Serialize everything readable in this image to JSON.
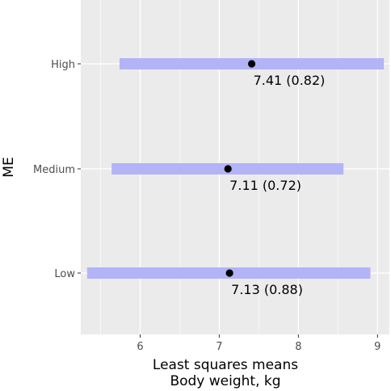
{
  "chart_data": {
    "type": "scatter",
    "title": "",
    "xlabel_lines": [
      "Least squares means",
      "Body weight, kg"
    ],
    "ylabel": "ME",
    "xlim": [
      5.25,
      9.15
    ],
    "x_ticks": [
      6,
      7,
      8,
      9
    ],
    "x_tick_labels": [
      "6",
      "7",
      "8",
      "9"
    ],
    "categories": [
      "High",
      "Medium",
      "Low"
    ],
    "points": [
      {
        "category": "High",
        "mean": 7.41,
        "lower": 5.74,
        "upper": 9.08,
        "label": "7.41 (0.82)"
      },
      {
        "category": "Medium",
        "mean": 7.11,
        "lower": 5.64,
        "upper": 8.57,
        "label": "7.11 (0.72)"
      },
      {
        "category": "Low",
        "mean": 7.13,
        "lower": 5.33,
        "upper": 8.91,
        "label": "7.13 (0.88)"
      }
    ],
    "grid": true,
    "colors": {
      "panel": "#ebebeb",
      "grid": "#ffffff",
      "interval": "#b3b3f8",
      "point": "#000000",
      "tick_text": "#4d4d4d"
    }
  }
}
